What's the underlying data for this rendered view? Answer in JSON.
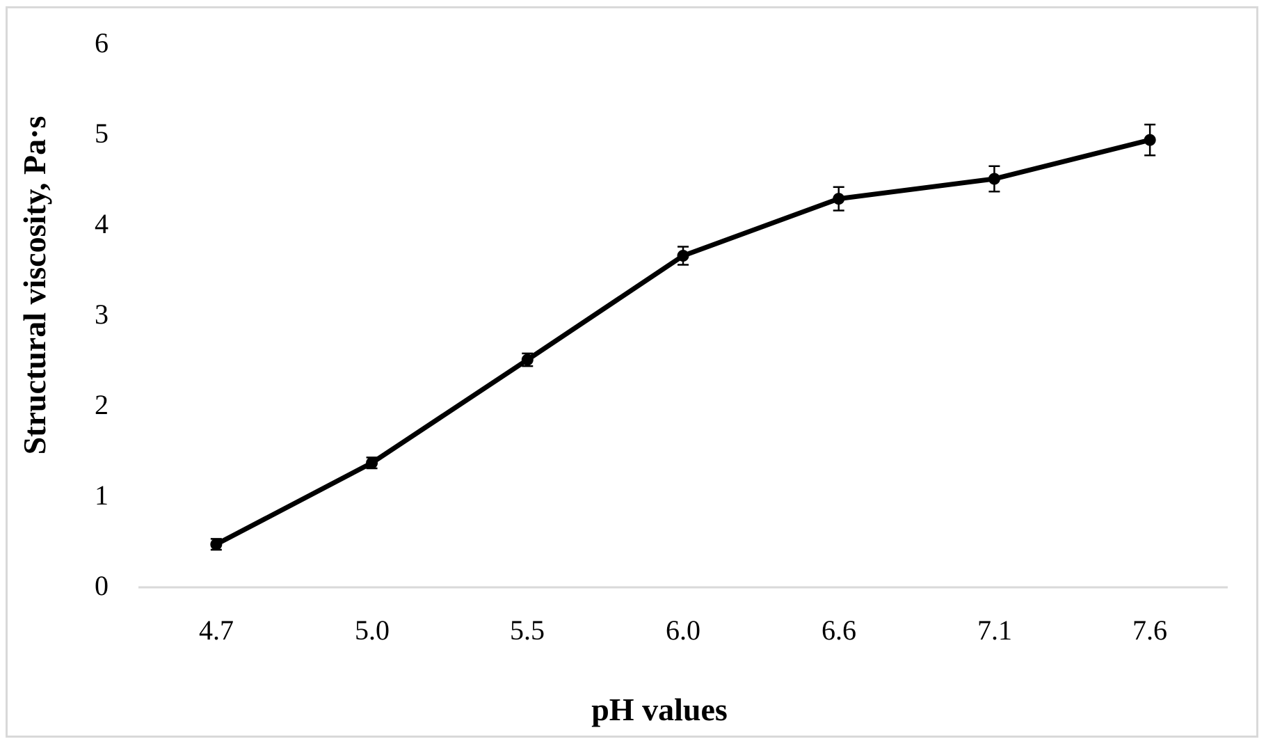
{
  "chart_data": {
    "type": "line",
    "title": "",
    "xlabel": "pH values",
    "ylabel": "Structural viscosity, Pa·s",
    "categories": [
      "4.7",
      "5.0",
      "5.5",
      "6.0",
      "6.6",
      "7.1",
      "7.6"
    ],
    "series": [
      {
        "name": "structural-viscosity",
        "values": [
          0.46,
          1.36,
          2.5,
          3.65,
          4.28,
          4.5,
          4.93
        ],
        "errors": [
          0.06,
          0.06,
          0.07,
          0.1,
          0.13,
          0.14,
          0.17
        ]
      }
    ],
    "ylim": [
      0,
      6
    ],
    "yticks": [
      0,
      1,
      2,
      3,
      4,
      5,
      6
    ],
    "ytick_labels_top_to_bottom": [
      "6",
      "5",
      "4",
      "3",
      "2",
      "1",
      "0"
    ],
    "x_axis_scale": "categorical",
    "grid": false,
    "legend": false,
    "marker": "circle",
    "colors": {
      "series": "#000000",
      "axis_line": "#d9d9d9",
      "text": "#000000",
      "frame_border": "#d9d9d9"
    }
  }
}
